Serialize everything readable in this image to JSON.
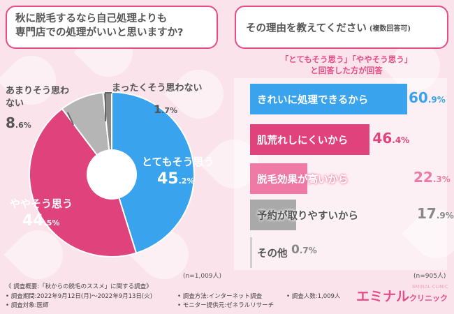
{
  "question": {
    "line1": "秋に脱毛するなら自己処理よりも",
    "line2": "専門店での処理がいいと思いますか?"
  },
  "reason_title": {
    "main": "その理由を教えてください",
    "sub": "(複数回答可)"
  },
  "reason_subtitle": {
    "line1": "「とてもそう思う」「ややそう思う」",
    "line2": "と回答した方が回答"
  },
  "colors": {
    "accent": "#e64d86",
    "blue": "#3aa3ee",
    "pink": "#e0427c",
    "pink_light": "#ef7aa5",
    "gray": "#a9a9a9",
    "gray_light": "#cfcfcf"
  },
  "chart_data": [
    {
      "type": "pie",
      "title": "秋に脱毛するなら自己処理よりも専門店での処理がいいと思いますか?",
      "n_label": "(n=1,009人)",
      "slices": [
        {
          "label": "とてもそう思う",
          "value": 45.2,
          "int": "45",
          "dec": ".2%",
          "color": "#3aa3ee"
        },
        {
          "label": "ややそう思う",
          "value": 44.5,
          "int": "44",
          "dec": ".5%",
          "color": "#e0427c"
        },
        {
          "label": "あまりそう思わない",
          "value": 8.6,
          "int": "8",
          "dec": ".6%",
          "color": "#b5b5b5"
        },
        {
          "label": "まったくそう思わない",
          "value": 1.7,
          "int": "1",
          "dec": ".7%",
          "color": "#8a8a8a"
        }
      ]
    },
    {
      "type": "bar",
      "title": "その理由を教えてください(複数回答可)",
      "n_label": "(n=905人)",
      "categories": [
        "きれいに処理できるから",
        "肌荒れしにくいから",
        "脱毛効果が高いから",
        "予約が取りやすいから",
        "その他"
      ],
      "values": [
        60.9,
        46.4,
        22.3,
        17.9,
        0.7
      ],
      "value_int": [
        "60",
        "46",
        "22",
        "17",
        "0"
      ],
      "value_dec": [
        ".9%",
        ".4%",
        ".3%",
        ".9%",
        ".7%"
      ],
      "xlim": [
        0,
        60.9
      ]
    }
  ],
  "footer": {
    "survey_title": "《 調査概要:「秋からの脱毛のススメ」に関する調査》",
    "period": "• 調査期間:2022年9月12日(月)〜2022年9月13日(火)",
    "target": "• 調査対象:医師",
    "method": "• 調査方法:インターネット調査",
    "monitor": "• モニター提供元:ゼネラルリサーチ",
    "count": "• 調査人数:1,009人"
  },
  "logo": {
    "main": "エミナル",
    "small": "クリニック",
    "tag": "EMINAL CLINIC"
  }
}
